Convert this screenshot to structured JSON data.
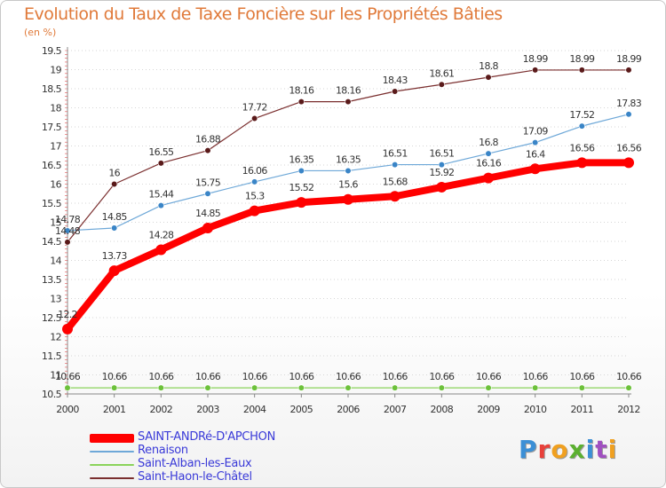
{
  "chart_data": {
    "type": "line",
    "title": "Evolution du Taux de Taxe Foncière sur les Propriétés Bâties",
    "subtitle": "(en %)",
    "x": [
      "2000",
      "2001",
      "2002",
      "2003",
      "2004",
      "2005",
      "2006",
      "2007",
      "2008",
      "2009",
      "2010",
      "2011",
      "2012"
    ],
    "ylim": [
      10.5,
      19.5
    ],
    "yticks": [
      "10.5",
      "11",
      "11.5",
      "12",
      "12.5",
      "13",
      "13.5",
      "14",
      "14.5",
      "15",
      "15.5",
      "16",
      "16.5",
      "17",
      "17.5",
      "18",
      "18.5",
      "19",
      "19.5"
    ],
    "grid": "horizontal dotted",
    "series": [
      {
        "name": "SAINT-ANDRé-D'APCHON",
        "color": "#ff0000",
        "values": [
          12.2,
          13.73,
          14.28,
          14.85,
          15.3,
          15.52,
          15.6,
          15.68,
          15.92,
          16.16,
          16.4,
          16.56,
          16.56
        ],
        "labels": [
          "12.2",
          "13.73",
          "14.28",
          "14.85",
          "15.3",
          "15.52",
          "15.6",
          "15.68",
          "15.92",
          "16.16",
          "16.4",
          "16.56",
          "16.56"
        ]
      },
      {
        "name": "Renaison",
        "color": "#6ea8d8",
        "values": [
          14.78,
          14.85,
          15.44,
          15.75,
          16.06,
          16.35,
          16.35,
          16.51,
          16.51,
          16.8,
          17.09,
          17.52,
          17.83
        ],
        "labels": [
          "14.78",
          "14.85",
          "15.44",
          "15.75",
          "16.06",
          "16.35",
          "16.35",
          "16.51",
          "16.51",
          "16.8",
          "17.09",
          "17.52",
          "17.83"
        ]
      },
      {
        "name": "Saint-Alban-les-Eaux",
        "color": "#8ad35a",
        "values": [
          10.66,
          10.66,
          10.66,
          10.66,
          10.66,
          10.66,
          10.66,
          10.66,
          10.66,
          10.66,
          10.66,
          10.66,
          10.66
        ],
        "labels": [
          "10.66",
          "10.66",
          "10.66",
          "10.66",
          "10.66",
          "10.66",
          "10.66",
          "10.66",
          "10.66",
          "10.66",
          "10.66",
          "10.66",
          "10.66"
        ]
      },
      {
        "name": "Saint-Haon-le-Châtel",
        "color": "#7a2e2e",
        "values": [
          14.48,
          16,
          16.55,
          16.88,
          17.72,
          18.16,
          18.16,
          18.43,
          18.61,
          18.8,
          18.99,
          18.99,
          18.99
        ],
        "labels": [
          "14.48",
          "16",
          "16.55",
          "16.88",
          "17.72",
          "18.16",
          "18.16",
          "18.43",
          "18.61",
          "18.8",
          "18.99",
          "18.99",
          "18.99"
        ]
      }
    ],
    "legend_position": "bottom-left"
  },
  "logo": {
    "letters": [
      "P",
      "r",
      "o",
      "x",
      "i",
      "t",
      "i"
    ]
  }
}
